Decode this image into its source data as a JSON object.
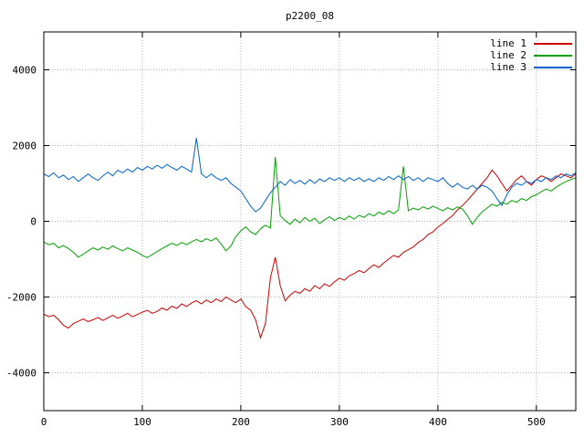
{
  "chart_data": {
    "type": "line",
    "title": "p2200_08",
    "xlabel": "",
    "ylabel": "",
    "xlim": [
      0,
      540
    ],
    "ylim": [
      -5000,
      5000
    ],
    "xticks": [
      0,
      100,
      200,
      300,
      400,
      500
    ],
    "yticks": [
      -4000,
      -2000,
      0,
      2000,
      4000
    ],
    "grid": true,
    "legend_position": "top-right",
    "x_start": 0,
    "x_step": 5,
    "series": [
      {
        "name": "line 1",
        "color": "#cc0000",
        "values": [
          -2450,
          -2520,
          -2480,
          -2600,
          -2750,
          -2820,
          -2700,
          -2640,
          -2580,
          -2650,
          -2600,
          -2540,
          -2620,
          -2550,
          -2480,
          -2560,
          -2500,
          -2430,
          -2520,
          -2460,
          -2400,
          -2350,
          -2430,
          -2380,
          -2290,
          -2350,
          -2240,
          -2300,
          -2180,
          -2250,
          -2160,
          -2100,
          -2180,
          -2080,
          -2150,
          -2050,
          -2120,
          -2000,
          -2080,
          -2150,
          -2050,
          -2250,
          -2350,
          -2600,
          -3080,
          -2700,
          -1500,
          -950,
          -1700,
          -2100,
          -1950,
          -1850,
          -1900,
          -1780,
          -1850,
          -1700,
          -1780,
          -1650,
          -1720,
          -1600,
          -1500,
          -1560,
          -1440,
          -1380,
          -1300,
          -1360,
          -1250,
          -1150,
          -1220,
          -1100,
          -1000,
          -900,
          -950,
          -820,
          -750,
          -680,
          -560,
          -480,
          -350,
          -280,
          -150,
          -60,
          50,
          150,
          300,
          420,
          550,
          700,
          850,
          1000,
          1150,
          1350,
          1200,
          1000,
          800,
          950,
          1100,
          1200,
          1050,
          950,
          1100,
          1200,
          1150,
          1050,
          1150,
          1250,
          1200,
          1150,
          1250
        ]
      },
      {
        "name": "line 2",
        "color": "#00a000",
        "values": [
          -550,
          -620,
          -580,
          -700,
          -640,
          -720,
          -820,
          -950,
          -870,
          -780,
          -700,
          -760,
          -680,
          -740,
          -650,
          -720,
          -780,
          -700,
          -760,
          -820,
          -900,
          -960,
          -880,
          -800,
          -720,
          -650,
          -580,
          -640,
          -560,
          -620,
          -540,
          -480,
          -540,
          -460,
          -520,
          -440,
          -600,
          -780,
          -650,
          -400,
          -250,
          -150,
          -280,
          -350,
          -200,
          -100,
          -180,
          1700,
          150,
          20,
          -80,
          60,
          -40,
          100,
          0,
          80,
          -60,
          40,
          120,
          20,
          100,
          40,
          140,
          60,
          160,
          100,
          200,
          140,
          240,
          180,
          280,
          200,
          300,
          1450,
          280,
          350,
          300,
          380,
          320,
          400,
          340,
          280,
          360,
          300,
          380,
          320,
          150,
          -80,
          100,
          250,
          350,
          450,
          400,
          500,
          450,
          550,
          500,
          600,
          550,
          650,
          700,
          780,
          850,
          800,
          900,
          980,
          1050,
          1100,
          1150
        ]
      },
      {
        "name": "line 3",
        "color": "#0060cc",
        "values": [
          1250,
          1180,
          1280,
          1150,
          1220,
          1100,
          1180,
          1050,
          1150,
          1250,
          1150,
          1080,
          1200,
          1300,
          1200,
          1350,
          1280,
          1380,
          1300,
          1420,
          1350,
          1450,
          1380,
          1480,
          1400,
          1500,
          1420,
          1350,
          1450,
          1380,
          1300,
          2200,
          1250,
          1150,
          1250,
          1150,
          1080,
          1150,
          1000,
          900,
          800,
          600,
          400,
          250,
          350,
          550,
          750,
          900,
          1050,
          950,
          1100,
          1000,
          1080,
          980,
          1100,
          1000,
          1120,
          1050,
          1150,
          1080,
          1150,
          1050,
          1150,
          1080,
          1150,
          1050,
          1120,
          1050,
          1150,
          1080,
          1180,
          1100,
          1200,
          1100,
          1180,
          1080,
          1150,
          1050,
          1150,
          1100,
          1050,
          1150,
          1000,
          900,
          1000,
          900,
          850,
          950,
          850,
          950,
          900,
          800,
          600,
          420,
          700,
          900,
          1000,
          950,
          1050,
          1000,
          1100,
          1050,
          1150,
          1100,
          1200,
          1150,
          1250,
          1200,
          1280
        ]
      }
    ]
  }
}
